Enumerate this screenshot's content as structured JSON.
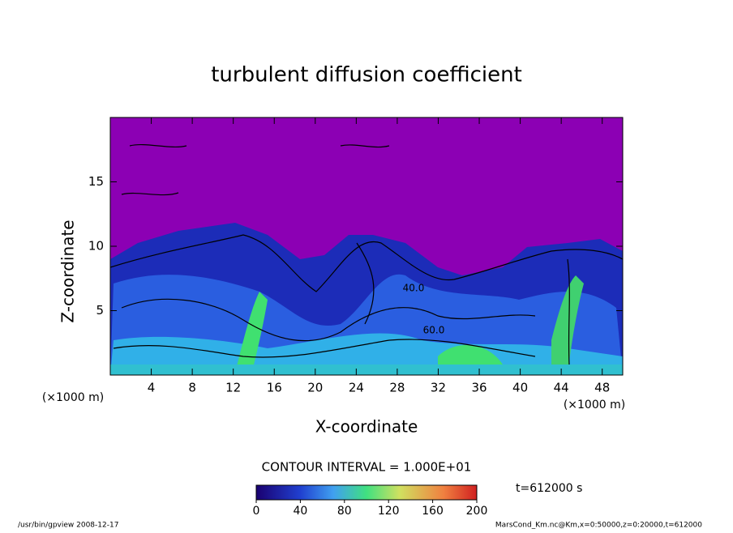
{
  "chart_data": {
    "type": "contour",
    "title": "turbulent diffusion coefficient",
    "xlabel": "X-coordinate",
    "ylabel": "Z-coordinate",
    "x_unit": "(×1000 m)",
    "xlim": [
      0,
      50
    ],
    "xticks": [
      4,
      8,
      12,
      16,
      20,
      24,
      28,
      32,
      36,
      40,
      44,
      48
    ],
    "ylim": [
      0,
      20
    ],
    "yticks": [
      5,
      10,
      15
    ],
    "contour_interval": "CONTOUR INTERVAL = 1.000E+01",
    "contour_labels": [
      {
        "value": 40,
        "label": "40.0"
      },
      {
        "value": 60,
        "label": "60.0"
      }
    ],
    "colorbar": {
      "lim": [
        0,
        200
      ],
      "ticks": [
        0,
        40,
        80,
        120,
        160,
        200
      ]
    },
    "time_label": "t=612000 s",
    "footer_left": "/usr/bin/gpview  2008-12-17",
    "footer_right": "MarsCond_Km.nc@Km,x=0:50000,z=0:20000,t=612000"
  }
}
